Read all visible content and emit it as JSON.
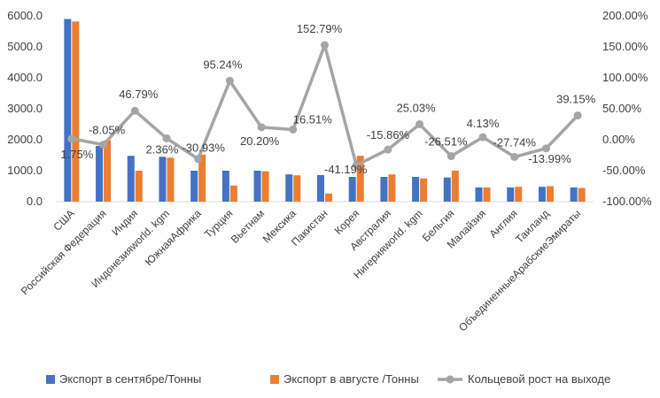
{
  "chart_data": {
    "type": "bar",
    "title": "",
    "xlabel": "",
    "ylabel": "",
    "categories": [
      "США",
      "Российская Федерация",
      "Индия",
      "Индонезияworld. kgm",
      "ЮжнаяАфрика",
      "Турция",
      "Вьетнам",
      "Мексика",
      "Пакистан",
      "Корея",
      "Австралия",
      "Нигерияworld. kgm",
      "Бельгия",
      "Малайзия",
      "Англия",
      "Таиланд",
      "ОбъединенныеАрабскиеЭмираты"
    ],
    "ylim": [
      0,
      6000
    ],
    "yticks": [
      "0.0",
      "1000.0",
      "2000.0",
      "3000.0",
      "4000.0",
      "5000.0",
      "6000.0"
    ],
    "y2lim": [
      -100,
      200
    ],
    "y2ticks": [
      "-100.00%",
      "-50.00%",
      "0.00%",
      "50.00%",
      "100.00%",
      "150.00%",
      "200.00%"
    ],
    "series": [
      {
        "name": "Экспорт в сентябре/Тонны",
        "type": "bar",
        "color": "#4472C4",
        "values": [
          5900,
          1800,
          1480,
          1450,
          1000,
          1000,
          1000,
          880,
          860,
          800,
          800,
          800,
          780,
          460,
          460,
          480,
          460
        ]
      },
      {
        "name": "Экспорт в августе /Тонны",
        "type": "bar",
        "color": "#ED7D31",
        "values": [
          5820,
          1980,
          1000,
          1420,
          1520,
          520,
          980,
          850,
          260,
          1480,
          880,
          750,
          1000,
          460,
          480,
          500,
          440
        ]
      },
      {
        "name": "Кольцевой рост на выходе",
        "type": "line",
        "axis": "secondary",
        "color": "#A5A5A5",
        "values": [
          1.75,
          -8.05,
          46.79,
          2.36,
          -30.93,
          95.24,
          20.2,
          16.51,
          152.79,
          -41.19,
          -15.86,
          25.03,
          -26.51,
          4.13,
          -27.74,
          -13.99,
          39.15
        ],
        "labels": [
          "1.75%",
          "-8.05%",
          "46.79%",
          "2.36%",
          "-30.93%",
          "95.24%",
          "20.20%",
          "16.51%",
          "152.79%",
          "-41.19%",
          "-15.86%",
          "25.03%",
          "-26.51%",
          "4.13%",
          "-27.74%",
          "-13.99%",
          "39.15%"
        ]
      }
    ],
    "legend_position": "bottom",
    "grid": false
  }
}
